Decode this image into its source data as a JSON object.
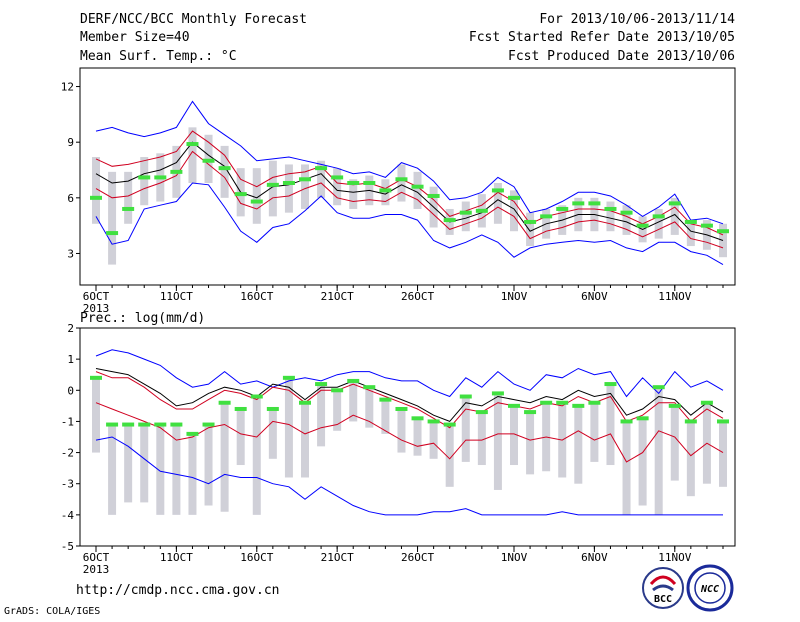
{
  "header": {
    "title": "DERF/NCC/BCC Monthly Forecast",
    "member_size": "Member Size=40",
    "variable": "Mean Surf. Temp.: °C",
    "period": "For 2013/10/06-2013/11/14",
    "fcst_started": "Fcst Started Refer Date 2013/10/05",
    "fcst_produced": "Fcst Produced Date 2013/10/06"
  },
  "footer": {
    "url": "http://cmdp.ncc.cma.gov.cn",
    "credit": "GrADS: COLA/IGES",
    "logo_bcc": "BCC",
    "logo_ncc": "NCC"
  },
  "chart_data": [
    {
      "type": "line",
      "ylabel": "",
      "ylim": [
        1.3,
        13
      ],
      "yticks": [
        3,
        6,
        9,
        12
      ],
      "x_tick_labels": [
        {
          "day": 0,
          "label": "6OCT"
        },
        {
          "day": 5,
          "label": "11OCT"
        },
        {
          "day": 10,
          "label": "16OCT"
        },
        {
          "day": 15,
          "label": "21OCT"
        },
        {
          "day": 20,
          "label": "26OCT"
        },
        {
          "day": 26,
          "label": "1NOV"
        },
        {
          "day": 31,
          "label": "6NOV"
        },
        {
          "day": 36,
          "label": "11NOV"
        }
      ],
      "year_label": "2013",
      "days": [
        "2013-10-06",
        "2013-10-07",
        "2013-10-08",
        "2013-10-09",
        "2013-10-10",
        "2013-10-11",
        "2013-10-12",
        "2013-10-13",
        "2013-10-14",
        "2013-10-15",
        "2013-10-16",
        "2013-10-17",
        "2013-10-18",
        "2013-10-19",
        "2013-10-20",
        "2013-10-21",
        "2013-10-22",
        "2013-10-23",
        "2013-10-24",
        "2013-10-25",
        "2013-10-26",
        "2013-10-27",
        "2013-10-28",
        "2013-10-29",
        "2013-10-30",
        "2013-10-31",
        "2013-11-01",
        "2013-11-02",
        "2013-11-03",
        "2013-11-04",
        "2013-11-05",
        "2013-11-06",
        "2013-11-07",
        "2013-11-08",
        "2013-11-09",
        "2013-11-10",
        "2013-11-11",
        "2013-11-12",
        "2013-11-13",
        "2013-11-14"
      ],
      "series": [
        {
          "key": "max",
          "color": "#0000ff",
          "values": [
            9.6,
            9.8,
            9.5,
            9.3,
            9.5,
            9.8,
            11.2,
            10.0,
            9.4,
            8.8,
            8.0,
            8.1,
            8.2,
            8.0,
            7.8,
            7.6,
            7.3,
            7.4,
            7.1,
            7.9,
            7.6,
            6.9,
            5.9,
            6.0,
            6.3,
            7.1,
            6.6,
            5.2,
            5.4,
            5.8,
            6.3,
            6.3,
            6.1,
            5.6,
            5.0,
            5.5,
            6.2,
            4.8,
            4.9,
            4.6
          ]
        },
        {
          "key": "upper",
          "color": "#d00020",
          "values": [
            8.1,
            7.7,
            7.8,
            8.0,
            8.2,
            8.5,
            9.6,
            9.0,
            8.3,
            7.0,
            6.6,
            7.1,
            7.3,
            7.4,
            7.7,
            6.8,
            6.7,
            6.8,
            6.5,
            7.0,
            6.6,
            5.9,
            5.0,
            5.3,
            5.6,
            6.3,
            5.8,
            4.6,
            5.0,
            5.2,
            5.4,
            5.4,
            5.3,
            5.0,
            4.6,
            5.0,
            5.5,
            4.6,
            4.4,
            4.0
          ]
        },
        {
          "key": "ensemble_mean",
          "color": "#000000",
          "values": [
            7.3,
            6.8,
            6.9,
            7.3,
            7.5,
            7.9,
            9.0,
            8.3,
            7.7,
            6.3,
            6.0,
            6.6,
            6.7,
            7.0,
            7.3,
            6.4,
            6.3,
            6.4,
            6.2,
            6.7,
            6.3,
            5.5,
            4.7,
            4.9,
            5.2,
            5.9,
            5.4,
            4.2,
            4.6,
            4.8,
            5.1,
            5.1,
            4.9,
            4.7,
            4.3,
            4.7,
            5.1,
            4.2,
            4.0,
            3.7
          ]
        },
        {
          "key": "lower",
          "color": "#d00020",
          "values": [
            6.5,
            6.0,
            6.1,
            6.5,
            6.8,
            7.2,
            8.5,
            7.8,
            7.1,
            5.7,
            5.4,
            6.0,
            6.1,
            6.5,
            6.8,
            6.0,
            5.8,
            5.9,
            5.8,
            6.3,
            5.9,
            5.1,
            4.3,
            4.6,
            4.9,
            5.5,
            5.0,
            3.8,
            4.2,
            4.4,
            4.7,
            4.8,
            4.6,
            4.3,
            3.9,
            4.3,
            4.7,
            3.8,
            3.6,
            3.3
          ]
        },
        {
          "key": "min",
          "color": "#0000ff",
          "values": [
            5.0,
            3.5,
            3.7,
            5.4,
            5.6,
            5.8,
            6.8,
            6.7,
            5.5,
            4.2,
            3.6,
            4.4,
            4.6,
            5.3,
            6.1,
            5.2,
            4.9,
            4.9,
            5.1,
            5.1,
            4.8,
            3.7,
            3.3,
            3.6,
            4.0,
            3.6,
            2.8,
            3.3,
            3.5,
            3.6,
            3.7,
            3.6,
            3.7,
            3.3,
            3.1,
            3.6,
            3.6,
            3.1,
            2.9,
            2.4
          ]
        }
      ],
      "boxes": {
        "color": "#d0d0d8",
        "low": [
          4.6,
          2.4,
          4.6,
          5.6,
          5.8,
          6.0,
          6.8,
          6.8,
          6.0,
          5.0,
          4.6,
          5.0,
          5.2,
          5.4,
          6.0,
          5.6,
          5.4,
          5.6,
          5.6,
          5.8,
          5.4,
          4.4,
          4.0,
          4.2,
          4.4,
          4.6,
          4.2,
          3.4,
          3.8,
          4.0,
          4.2,
          4.2,
          4.2,
          4.0,
          3.6,
          3.8,
          4.0,
          3.4,
          3.2,
          2.8
        ],
        "high": [
          8.2,
          7.4,
          7.4,
          8.2,
          8.4,
          8.8,
          9.8,
          9.4,
          8.8,
          7.6,
          7.6,
          8.0,
          7.8,
          7.8,
          8.0,
          7.6,
          7.0,
          7.2,
          7.0,
          7.8,
          7.4,
          6.6,
          5.4,
          5.8,
          6.2,
          6.8,
          6.4,
          5.2,
          5.4,
          5.6,
          6.0,
          6.0,
          5.8,
          5.6,
          5.0,
          5.4,
          6.0,
          4.8,
          4.8,
          4.6
        ]
      },
      "markers": {
        "color": "#40e040",
        "values": [
          6.0,
          4.1,
          5.4,
          7.1,
          7.1,
          7.4,
          8.9,
          8.0,
          7.6,
          6.2,
          5.8,
          6.7,
          6.8,
          7.0,
          7.6,
          7.1,
          6.8,
          6.8,
          6.4,
          7.0,
          6.6,
          6.1,
          4.8,
          5.2,
          5.3,
          6.4,
          6.0,
          4.7,
          5.0,
          5.4,
          5.7,
          5.7,
          5.4,
          5.2,
          4.5,
          5.0,
          5.7,
          4.7,
          4.5,
          4.2
        ]
      }
    },
    {
      "type": "line",
      "ylabel": "Prec.: log(mm/d)",
      "ylim": [
        -5,
        2
      ],
      "yticks": [
        -5,
        -4,
        -3,
        -2,
        -1,
        0,
        1,
        2
      ],
      "x_tick_labels": [
        {
          "day": 0,
          "label": "6OCT"
        },
        {
          "day": 5,
          "label": "11OCT"
        },
        {
          "day": 10,
          "label": "16OCT"
        },
        {
          "day": 15,
          "label": "21OCT"
        },
        {
          "day": 20,
          "label": "26OCT"
        },
        {
          "day": 26,
          "label": "1NOV"
        },
        {
          "day": 31,
          "label": "6NOV"
        },
        {
          "day": 36,
          "label": "11NOV"
        }
      ],
      "year_label": "2013",
      "series": [
        {
          "key": "max",
          "color": "#0000ff",
          "values": [
            1.1,
            1.3,
            1.2,
            1.0,
            0.8,
            0.4,
            0.1,
            0.2,
            0.6,
            0.2,
            0.3,
            0.1,
            0.3,
            0.4,
            0.3,
            0.5,
            0.6,
            0.6,
            0.4,
            0.3,
            0.3,
            0.0,
            -0.2,
            0.4,
            0.1,
            0.6,
            0.2,
            0.0,
            0.5,
            0.4,
            0.7,
            0.5,
            0.6,
            -0.2,
            0.4,
            -0.1,
            0.6,
            0.1,
            0.3,
            0.0
          ]
        },
        {
          "key": "upper",
          "color": "#000000",
          "values": [
            0.7,
            0.6,
            0.5,
            0.2,
            -0.1,
            -0.5,
            -0.4,
            -0.1,
            0.1,
            0.0,
            -0.2,
            0.2,
            0.1,
            -0.3,
            0.1,
            0.1,
            0.3,
            0.1,
            -0.1,
            -0.3,
            -0.5,
            -0.8,
            -1.0,
            -0.4,
            -0.5,
            -0.2,
            -0.3,
            -0.4,
            -0.2,
            -0.3,
            0.0,
            -0.2,
            -0.1,
            -0.8,
            -0.6,
            -0.2,
            -0.3,
            -0.8,
            -0.4,
            -0.7
          ]
        },
        {
          "key": "ensemble_mean",
          "color": "#d00020",
          "values": [
            0.6,
            0.4,
            0.4,
            0.1,
            -0.3,
            -0.6,
            -0.6,
            -0.3,
            0.0,
            -0.1,
            -0.3,
            0.1,
            0.0,
            -0.4,
            0.0,
            0.0,
            0.2,
            0.0,
            -0.2,
            -0.4,
            -0.6,
            -0.9,
            -1.2,
            -0.6,
            -0.7,
            -0.4,
            -0.5,
            -0.6,
            -0.4,
            -0.5,
            -0.2,
            -0.4,
            -0.2,
            -1.0,
            -0.8,
            -0.4,
            -0.4,
            -1.0,
            -0.6,
            -0.9
          ]
        },
        {
          "key": "lower",
          "color": "#d00020",
          "values": [
            -0.4,
            -0.6,
            -0.8,
            -1.0,
            -1.2,
            -1.6,
            -1.5,
            -1.2,
            -1.1,
            -1.4,
            -1.5,
            -1.0,
            -1.1,
            -1.4,
            -1.2,
            -1.1,
            -0.8,
            -1.0,
            -1.3,
            -1.6,
            -1.8,
            -1.7,
            -2.2,
            -1.6,
            -1.6,
            -1.4,
            -1.4,
            -1.6,
            -1.5,
            -1.6,
            -1.3,
            -1.6,
            -1.4,
            -2.3,
            -2.0,
            -1.3,
            -1.5,
            -2.1,
            -1.7,
            -2.0
          ]
        },
        {
          "key": "min",
          "color": "#0000ff",
          "values": [
            -1.6,
            -1.5,
            -1.8,
            -2.2,
            -2.6,
            -2.7,
            -2.8,
            -3.0,
            -2.7,
            -2.8,
            -2.8,
            -3.0,
            -3.1,
            -3.5,
            -3.1,
            -3.4,
            -3.7,
            -3.9,
            -4.0,
            -4.0,
            -4.0,
            -3.9,
            -3.9,
            -3.8,
            -4.0,
            -4.0,
            -4.0,
            -4.0,
            -4.0,
            -3.9,
            -4.0,
            -4.0,
            -4.0,
            -4.0,
            -4.0,
            -4.0,
            -4.0,
            -4.0,
            -4.0,
            -4.0
          ]
        }
      ],
      "boxes": {
        "color": "#d0d0d8",
        "low": [
          -2.0,
          -4.0,
          -3.6,
          -3.6,
          -4.0,
          -4.0,
          -4.0,
          -3.7,
          -3.9,
          -2.4,
          -4.0,
          -2.2,
          -2.8,
          -2.8,
          -1.8,
          -1.3,
          -1.0,
          -1.2,
          -1.4,
          -2.0,
          -2.1,
          -2.2,
          -3.1,
          -2.3,
          -2.4,
          -3.2,
          -2.4,
          -2.7,
          -2.6,
          -2.8,
          -3.0,
          -2.3,
          -2.4,
          -4.0,
          -3.7,
          -4.0,
          -2.9,
          -3.4,
          -3.0,
          -3.1
        ]
      },
      "markers": {
        "color": "#40e040",
        "values": [
          0.4,
          -1.1,
          -1.1,
          -1.1,
          -1.1,
          -1.1,
          -1.4,
          -1.1,
          -0.4,
          -0.6,
          -0.2,
          -0.6,
          0.4,
          -0.4,
          0.2,
          0.0,
          0.3,
          0.1,
          -0.3,
          -0.6,
          -0.9,
          -1.0,
          -1.1,
          -0.2,
          -0.7,
          -0.1,
          -0.5,
          -0.7,
          -0.4,
          -0.4,
          -0.5,
          -0.4,
          0.2,
          -1.0,
          -0.9,
          0.1,
          -0.5,
          -1.0,
          -0.4,
          -1.0
        ]
      }
    }
  ]
}
